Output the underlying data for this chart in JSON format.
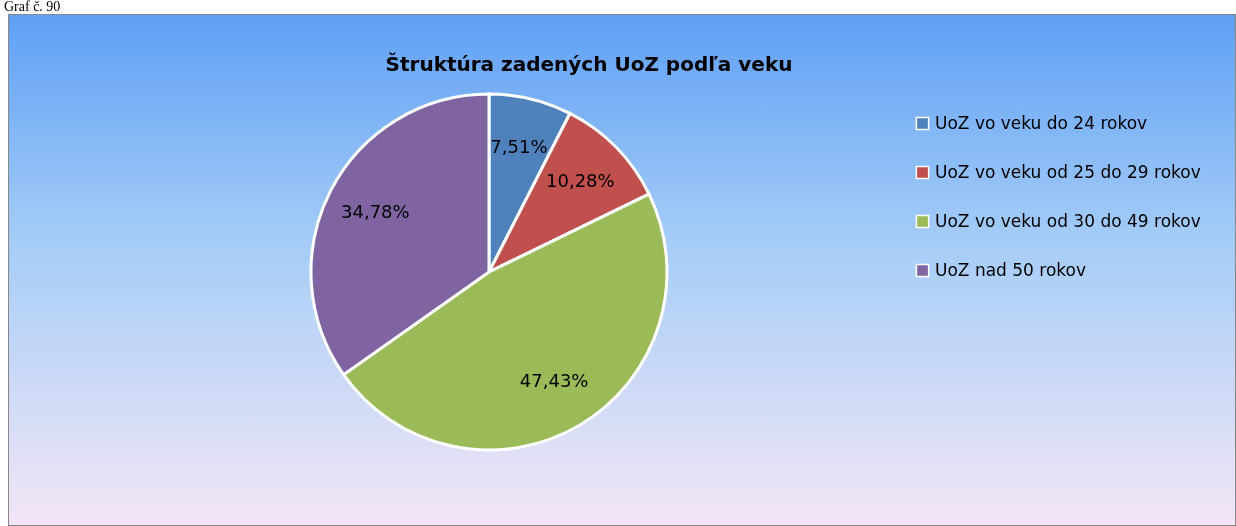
{
  "chart_data": {
    "type": "pie",
    "title": "Štruktúra zadených UoZ podľa veku",
    "categories": [
      "UoZ vo veku do 24 rokov",
      "UoZ vo veku od 25 do 29 rokov",
      "UoZ vo veku od 30 do 49 rokov",
      "UoZ nad 50 rokov"
    ],
    "values": [
      7.51,
      10.28,
      47.43,
      34.78
    ],
    "value_labels": [
      "7,51%",
      "10,28%",
      "47,43%",
      "34,78%"
    ],
    "colors": [
      "#4f81bd",
      "#c0504d",
      "#9bbb59",
      "#8064a2"
    ],
    "legend": "right",
    "annotations": [
      "Graf č. 90"
    ]
  }
}
